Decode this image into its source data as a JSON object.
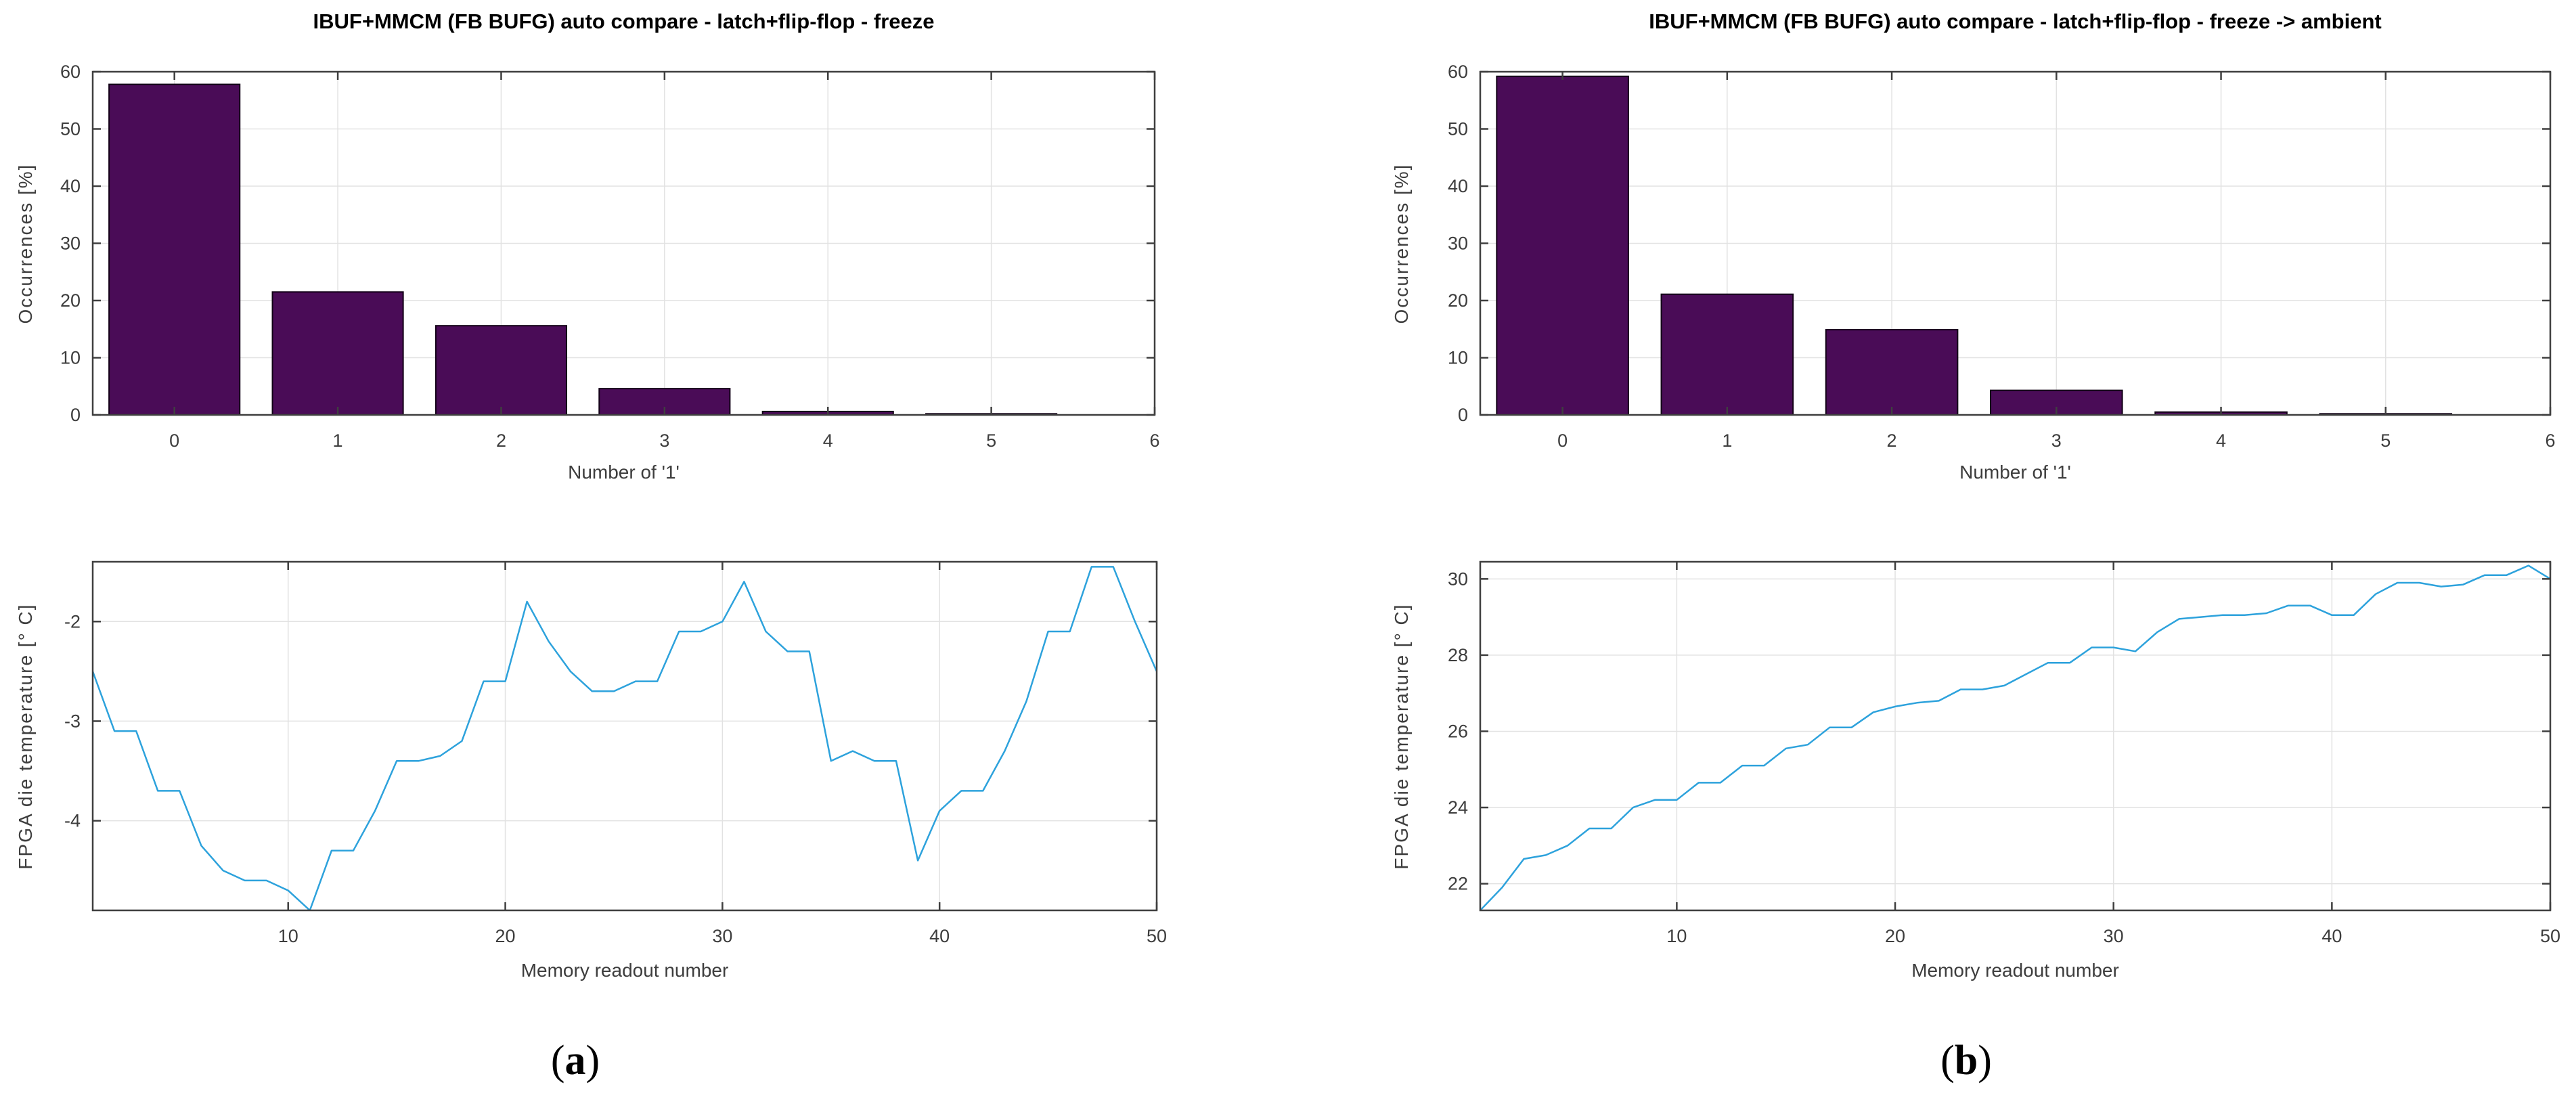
{
  "style": {
    "bar_fill": "#4a0c57",
    "bar_edge": "#120116",
    "line_color": "#2da2dc",
    "grid_color": "#e2e2e2",
    "frame_color": "#3f3f3f",
    "tick_text_color": "#3d3d3d",
    "background": "#ffffff"
  },
  "chart_data": [
    {
      "id": "histogram-freeze",
      "type": "bar",
      "title": "IBUF+MMCM (FB BUFG) auto compare - latch+flip-flop - freeze",
      "xlabel": "Number of '1'",
      "ylabel": "Occurrences [%]",
      "categories": [
        0,
        1,
        2,
        3,
        4,
        5
      ],
      "values": [
        57.8,
        21.5,
        15.6,
        4.6,
        0.6,
        0.2
      ],
      "bar_width": 0.8,
      "xlim": [
        -0.5,
        6
      ],
      "ylim": [
        0,
        60
      ],
      "xticks": [
        0,
        1,
        2,
        3,
        4,
        5,
        6
      ],
      "yticks": [
        0,
        10,
        20,
        30,
        40,
        50,
        60
      ],
      "grid": true,
      "bar_color": "#4a0c57"
    },
    {
      "id": "histogram-freeze-ambient",
      "type": "bar",
      "title": "IBUF+MMCM (FB BUFG) auto compare - latch+flip-flop - freeze -> ambient",
      "xlabel": "Number of '1'",
      "ylabel": "Occurrences [%]",
      "categories": [
        0,
        1,
        2,
        3,
        4,
        5
      ],
      "values": [
        59.2,
        21.1,
        14.9,
        4.3,
        0.5,
        0.2
      ],
      "bar_width": 0.8,
      "xlim": [
        -0.5,
        6
      ],
      "ylim": [
        0,
        60
      ],
      "xticks": [
        0,
        1,
        2,
        3,
        4,
        5,
        6
      ],
      "yticks": [
        0,
        10,
        20,
        30,
        40,
        50,
        60
      ],
      "grid": true,
      "bar_color": "#4a0c57"
    },
    {
      "id": "temperature-freeze",
      "type": "line",
      "title": "",
      "xlabel": "Memory readout number",
      "ylabel": "FPGA die temperature [° C]",
      "x_start": 1,
      "y": [
        -2.5,
        -3.1,
        -3.1,
        -3.7,
        -3.7,
        -4.25,
        -4.5,
        -4.6,
        -4.6,
        -4.7,
        -4.9,
        -4.3,
        -4.3,
        -3.9,
        -3.4,
        -3.4,
        -3.35,
        -3.2,
        -2.6,
        -2.6,
        -1.8,
        -2.2,
        -2.5,
        -2.7,
        -2.7,
        -2.6,
        -2.6,
        -2.1,
        -2.1,
        -2.0,
        -1.6,
        -2.1,
        -2.3,
        -2.3,
        -3.4,
        -3.3,
        -3.4,
        -3.4,
        -4.4,
        -3.9,
        -3.7,
        -3.7,
        -3.3,
        -2.8,
        -2.1,
        -2.1,
        -1.45,
        -1.45,
        -2.0,
        -2.5
      ],
      "xlim": [
        1,
        50
      ],
      "ylim": [
        -4.9,
        -1.4
      ],
      "xticks": [
        10,
        20,
        30,
        40,
        50
      ],
      "yticks": [
        -4,
        -3,
        -2
      ],
      "grid": true,
      "line_color": "#2da2dc"
    },
    {
      "id": "temperature-freeze-ambient",
      "type": "line",
      "title": "",
      "xlabel": "Memory readout number",
      "ylabel": "FPGA die temperature [° C]",
      "x_start": 1,
      "y": [
        21.3,
        21.9,
        22.65,
        22.75,
        23.0,
        23.45,
        23.45,
        24.0,
        24.2,
        24.2,
        24.65,
        24.65,
        25.1,
        25.1,
        25.55,
        25.65,
        26.1,
        26.1,
        26.5,
        26.65,
        26.75,
        26.8,
        27.1,
        27.1,
        27.2,
        27.5,
        27.8,
        27.8,
        28.2,
        28.2,
        28.1,
        28.6,
        28.95,
        29.0,
        29.05,
        29.05,
        29.1,
        29.3,
        29.3,
        29.05,
        29.05,
        29.6,
        29.9,
        29.9,
        29.8,
        29.85,
        30.1,
        30.1,
        30.35,
        30.0
      ],
      "xlim": [
        1,
        50
      ],
      "ylim": [
        21.3,
        30.45
      ],
      "xticks": [
        10,
        20,
        30,
        40,
        50
      ],
      "yticks": [
        22,
        24,
        26,
        28,
        30
      ],
      "grid": true,
      "line_color": "#2da2dc"
    }
  ],
  "captions": [
    {
      "open": "(",
      "letter": "a",
      "close": ")"
    },
    {
      "open": "(",
      "letter": "b",
      "close": ")"
    }
  ]
}
